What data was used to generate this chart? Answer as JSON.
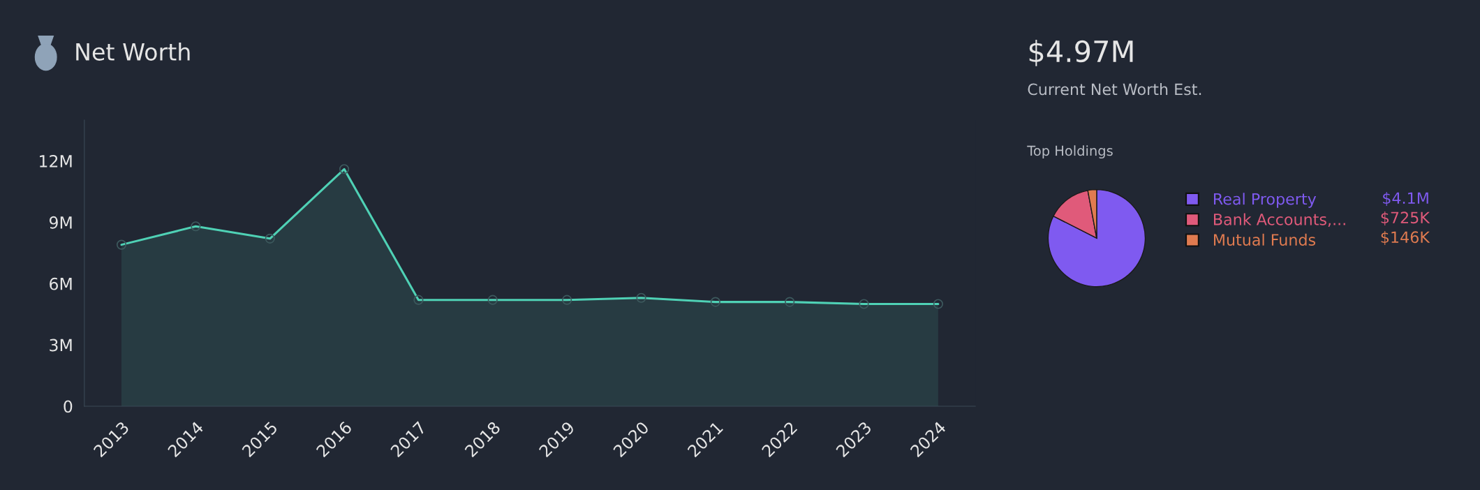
{
  "chart_data": [
    {
      "type": "area",
      "title": "Net Worth",
      "categories": [
        "2013",
        "2014",
        "2015",
        "2016",
        "2017",
        "2018",
        "2019",
        "2020",
        "2021",
        "2022",
        "2023",
        "2024"
      ],
      "series": [
        {
          "color": "#4fd1b5",
          "values": [
            7.9,
            8.8,
            8.2,
            11.6,
            5.2,
            5.2,
            5.2,
            5.3,
            5.1,
            5.1,
            5.0,
            5.0
          ]
        }
      ],
      "ylim": [
        0,
        14
      ],
      "yticks": [
        0,
        {
          "value": 3,
          "label": "3M"
        },
        {
          "value": 6,
          "label": "6M"
        },
        {
          "value": 9,
          "label": "9M"
        },
        {
          "value": 12,
          "label": "12M"
        }
      ],
      "marker": "circle",
      "grid": false,
      "legend": false
    },
    {
      "type": "pie",
      "title": "Top Holdings",
      "annotations": [
        "$4.97M",
        "Current Net Worth Est."
      ],
      "categories": [
        "Real Property",
        "Bank Accounts,...",
        "Mutual Funds"
      ],
      "values": [
        4100000,
        725000,
        146000
      ],
      "value_labels": [
        "$4.1M",
        "$725K",
        "$146K"
      ],
      "colors": [
        "#7f5af0",
        "#e05a7a",
        "#e07b50"
      ],
      "legend": "right"
    }
  ]
}
